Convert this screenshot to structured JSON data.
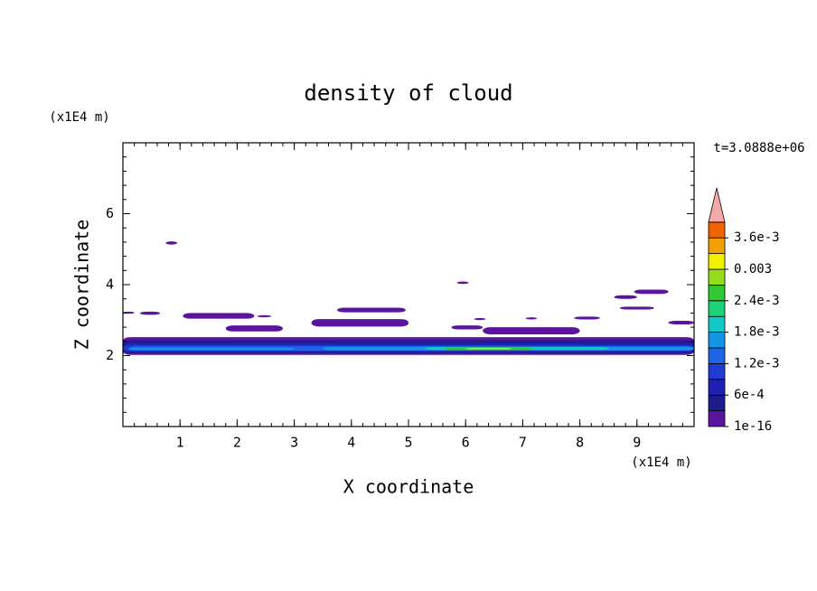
{
  "chart_data": {
    "type": "contour",
    "title": "density of cloud",
    "x_label": "X coordinate",
    "y_label": "Z coordinate",
    "x_unit": "(x1E4 m)",
    "y_unit": "(x1E4 m)",
    "time_label": "t=3.0888e+06",
    "xlim": [
      0,
      10
    ],
    "ylim": [
      0,
      8
    ],
    "xticks": [
      1,
      2,
      3,
      4,
      5,
      6,
      7,
      8,
      9
    ],
    "yticks": [
      2,
      4,
      6
    ],
    "levels": [
      1e-16,
      0.0003,
      0.0006,
      0.0009,
      0.0012,
      0.0015,
      0.0018,
      0.0021,
      0.0024,
      0.0027,
      0.003,
      0.0033,
      0.0036,
      0.0039
    ],
    "colors": [
      "#5a14a0",
      "#1c1c8a",
      "#2020b4",
      "#1e3cd2",
      "#1e64e6",
      "#1496e6",
      "#14c8c8",
      "#1ed278",
      "#32c832",
      "#96dc1e",
      "#f0f000",
      "#f0a000",
      "#f06400"
    ],
    "extend_color": "#f4a8a8",
    "colorbar_ticks": [
      1e-16,
      {
        "value": 0.0006,
        "label": "6e-4"
      },
      {
        "value": 0.0012,
        "label": "1.2e-3"
      },
      {
        "value": 0.0018,
        "label": "1.8e-3"
      },
      {
        "value": 0.0024,
        "label": "2.4e-3"
      },
      0.003,
      {
        "value": 0.0036,
        "label": "3.6e-3"
      }
    ],
    "regions": [
      {
        "x": [
          0,
          10
        ],
        "z": [
          2.02,
          2.52
        ],
        "value": 1e-16
      },
      {
        "x": [
          0.75,
          0.95
        ],
        "z": [
          5.13,
          5.22
        ],
        "value": 1e-16
      },
      {
        "x": [
          5.85,
          6.05
        ],
        "z": [
          4.02,
          4.09
        ],
        "value": 1e-16
      },
      {
        "x": [
          0,
          0.2
        ],
        "z": [
          3.18,
          3.24
        ],
        "value": 1e-16
      },
      {
        "x": [
          0.3,
          0.65
        ],
        "z": [
          3.15,
          3.24
        ],
        "value": 1e-16
      },
      {
        "x": [
          1.05,
          2.3
        ],
        "z": [
          3.04,
          3.2
        ],
        "value": 1e-16
      },
      {
        "x": [
          2.35,
          2.6
        ],
        "z": [
          3.08,
          3.14
        ],
        "value": 1e-16
      },
      {
        "x": [
          3.75,
          4.95
        ],
        "z": [
          3.22,
          3.35
        ],
        "value": 1e-16
      },
      {
        "x": [
          3.3,
          5.0
        ],
        "z": [
          2.82,
          3.03
        ],
        "value": 1e-16
      },
      {
        "x": [
          5.75,
          6.3
        ],
        "z": [
          2.74,
          2.85
        ],
        "value": 1e-16
      },
      {
        "x": [
          1.8,
          2.8
        ],
        "z": [
          2.68,
          2.85
        ],
        "value": 1e-16
      },
      {
        "x": [
          6.15,
          6.35
        ],
        "z": [
          3.0,
          3.06
        ],
        "value": 1e-16
      },
      {
        "x": [
          7.05,
          7.25
        ],
        "z": [
          3.02,
          3.08
        ],
        "value": 1e-16
      },
      {
        "x": [
          7.9,
          8.35
        ],
        "z": [
          3.02,
          3.1
        ],
        "value": 1e-16
      },
      {
        "x": [
          6.3,
          8.0
        ],
        "z": [
          2.6,
          2.8
        ],
        "value": 1e-16
      },
      {
        "x": [
          8.6,
          9.0
        ],
        "z": [
          3.6,
          3.7
        ],
        "value": 1e-16
      },
      {
        "x": [
          8.95,
          9.55
        ],
        "z": [
          3.74,
          3.86
        ],
        "value": 1e-16
      },
      {
        "x": [
          8.7,
          9.3
        ],
        "z": [
          3.3,
          3.38
        ],
        "value": 1e-16
      },
      {
        "x": [
          9.55,
          10
        ],
        "z": [
          2.88,
          2.98
        ],
        "value": 1e-16
      },
      {
        "x": [
          0,
          10
        ],
        "z": [
          2.07,
          2.43
        ],
        "value": 0.0003
      },
      {
        "x": [
          0,
          10
        ],
        "z": [
          2.1,
          2.36
        ],
        "value": 0.0006
      },
      {
        "x": [
          0,
          10
        ],
        "z": [
          2.12,
          2.3
        ],
        "value": 0.0009
      },
      {
        "x": [
          0.1,
          10
        ],
        "z": [
          2.14,
          2.26
        ],
        "value": 0.0012
      },
      {
        "x": [
          0.1,
          3.0
        ],
        "z": [
          2.16,
          2.22
        ],
        "value": 0.0016
      },
      {
        "x": [
          3.5,
          10
        ],
        "z": [
          2.15,
          2.25
        ],
        "value": 0.0016
      },
      {
        "x": [
          5.3,
          8.5
        ],
        "z": [
          2.16,
          2.24
        ],
        "value": 0.0019
      },
      {
        "x": [
          5.6,
          7.2
        ],
        "z": [
          2.17,
          2.23
        ],
        "value": 0.0025
      },
      {
        "x": [
          6.0,
          6.8
        ],
        "z": [
          2.18,
          2.21
        ],
        "value": 0.003
      }
    ]
  }
}
